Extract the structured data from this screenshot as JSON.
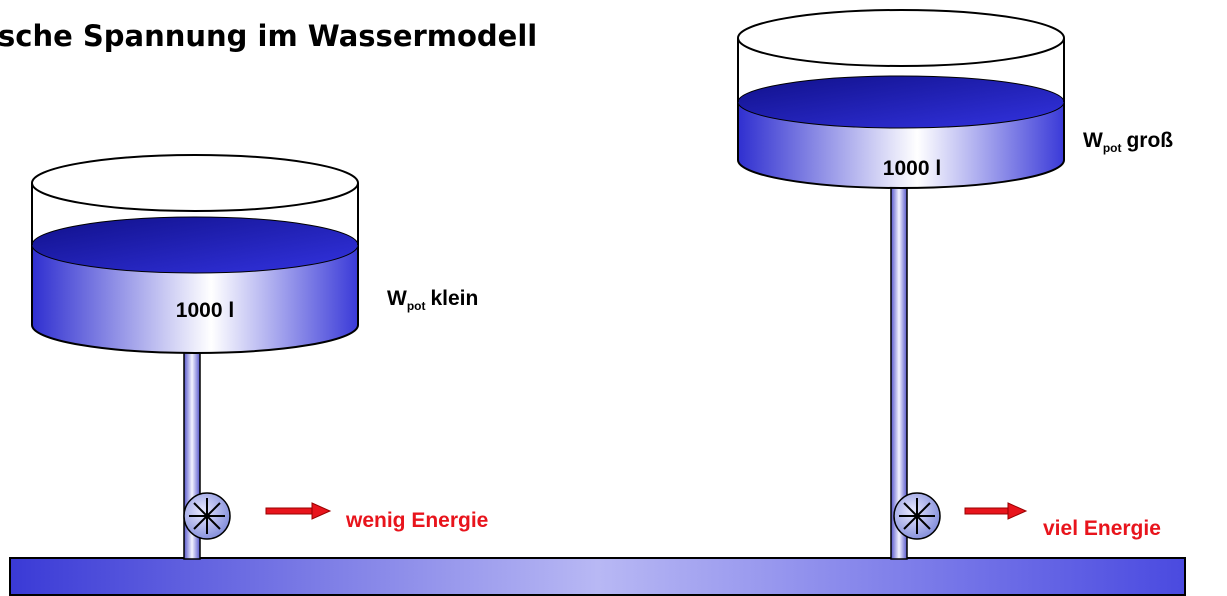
{
  "title": "sche Spannung im Wassermodell",
  "tanks": [
    {
      "volume": "1000 l",
      "energy": {
        "symbol": "W",
        "subscript": "pot",
        "level": "klein"
      },
      "output": "wenig Energie"
    },
    {
      "volume": "1000 l",
      "energy": {
        "symbol": "W",
        "subscript": "pot",
        "level": "groß"
      },
      "output": "viel Energie"
    }
  ]
}
